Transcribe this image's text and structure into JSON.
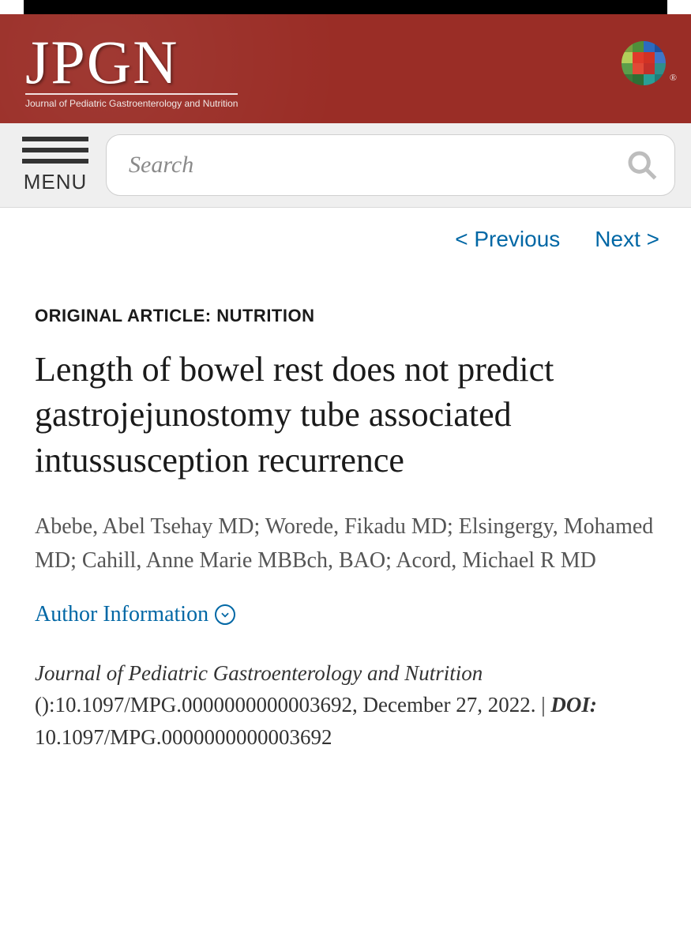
{
  "colors": {
    "header_bg": "#9a2d26",
    "navbar_bg": "#efefef",
    "link": "#0067a5",
    "text": "#333333",
    "muted": "#555555",
    "search_placeholder": "#8a8a8a",
    "search_icon": "#bdbdbd"
  },
  "header": {
    "logo_main": "JPGN",
    "logo_sub": "Journal of Pediatric Gastroenterology and Nutrition",
    "wiley_colors": [
      "#7a9e3f",
      "#4f8f3a",
      "#2c6abf",
      "#1f4e9c",
      "#b2cf5a",
      "#e03a2a",
      "#d13224",
      "#3f76c8",
      "#5b9e4a",
      "#e24a36",
      "#c2302a",
      "#2f8f8a",
      "#3a7a3a",
      "#2f6f35",
      "#2a9e96",
      "#1f7d78"
    ]
  },
  "nav": {
    "menu_label": "MENU",
    "search_placeholder": "Search"
  },
  "pager": {
    "prev": "< Previous",
    "next": "Next >"
  },
  "article": {
    "category": "ORIGINAL ARTICLE: NUTRITION",
    "title": "Length of bowel rest does not predict gastrojejunostomy tube associated intussusception recurrence",
    "authors": "Abebe, Abel Tsehay MD; Worede, Fikadu MD; Elsingergy, Mohamed MD; Cahill, Anne Marie MBBch, BAO; Acord, Michael R MD",
    "author_info_label": "Author Information",
    "citation": {
      "journal": "Journal of Pediatric Gastroenterology and Nutrition",
      "volume_issue": "()",
      "identifier": ":10.1097/MPG.0000000000003692, ",
      "date": "December 27, 2022.",
      "separator": " | ",
      "doi_label": "DOI:",
      "doi_value": " 10.1097/MPG.0000000000003692"
    }
  }
}
